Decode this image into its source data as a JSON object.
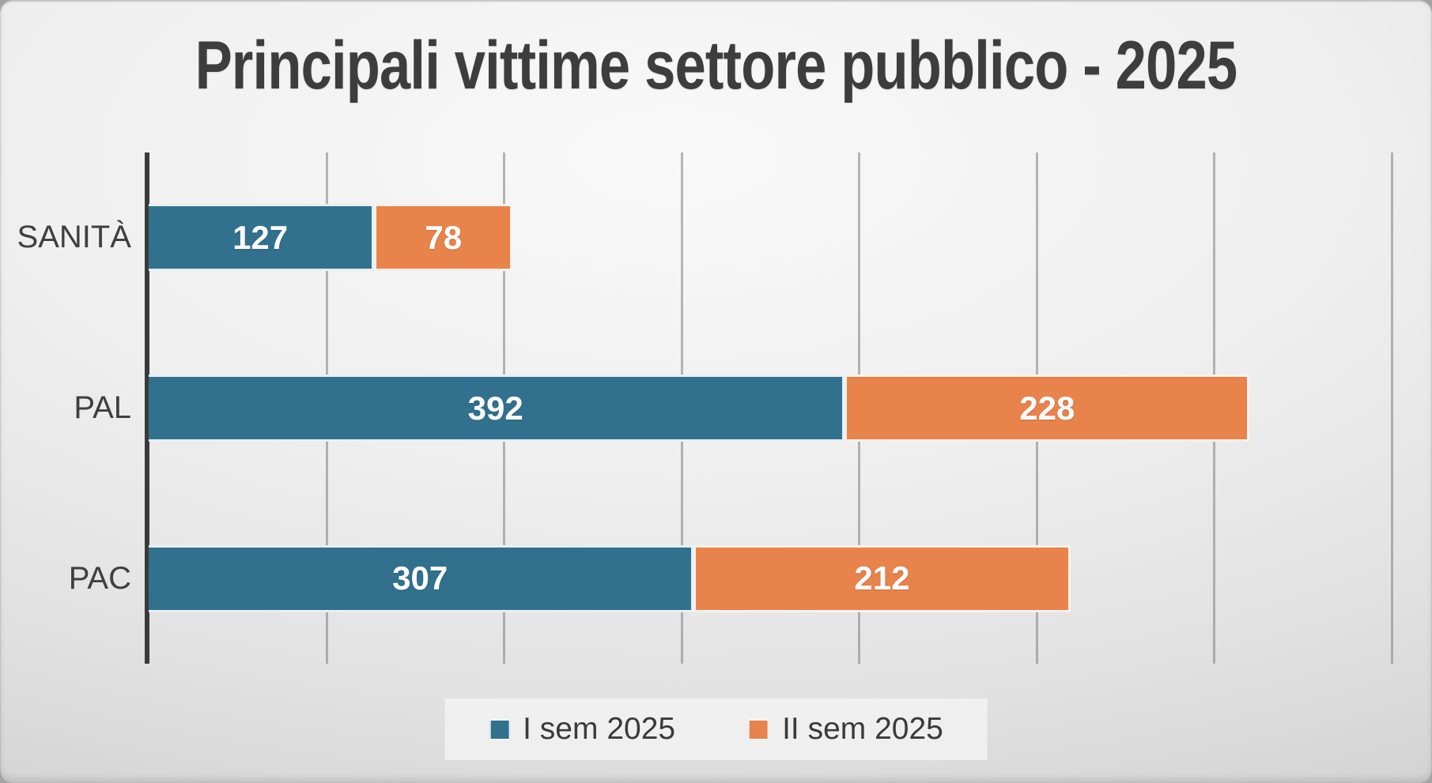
{
  "chart_data": {
    "type": "bar",
    "orientation": "horizontal-stacked",
    "title": "Principali vittime settore pubblico - 2025",
    "categories": [
      "SANITÀ",
      "PAL",
      "PAC"
    ],
    "series": [
      {
        "name": "I sem 2025",
        "color": "#32718E",
        "values": [
          127,
          392,
          307
        ]
      },
      {
        "name": "II sem 2025",
        "color": "#E8834B",
        "values": [
          78,
          228,
          212
        ]
      }
    ],
    "totals": [
      205,
      620,
      519
    ],
    "xlabel": "",
    "ylabel": "",
    "xlim": [
      0,
      700
    ],
    "gridline_interval": 100,
    "grid": true,
    "data_labels": true,
    "legend_position": "bottom"
  },
  "colors": {
    "series_1": "#32718E",
    "series_2": "#E8834B",
    "title_text": "#3d3d3d",
    "category_text": "#3f3f3f",
    "axis_line": "#3a3a3a",
    "gridline": "#7d7d7d",
    "background_center": "#f9f9f9",
    "background_edge": "#c2c2c2",
    "legend_background": "#f2f2f2"
  }
}
